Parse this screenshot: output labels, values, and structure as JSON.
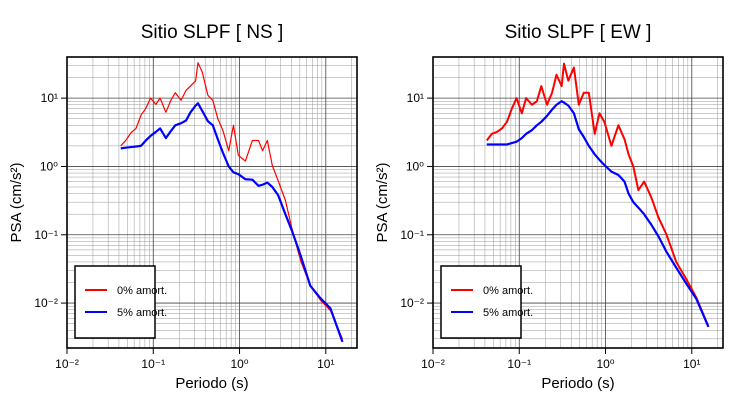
{
  "chart_data": [
    {
      "type": "line",
      "title": "Sitio SLPF [ NS ]",
      "xlabel": "Periodo (s)",
      "ylabel": "PSA (cm/s²)",
      "log_x": true,
      "log_y": true,
      "grid": true,
      "legend": "lower left",
      "xlim": [
        0.01,
        23
      ],
      "ylim": [
        0.0022,
        40
      ],
      "xticks": [
        {
          "value": 0.01,
          "label": "10⁻²"
        },
        {
          "value": 0.1,
          "label": "10⁻¹"
        },
        {
          "value": 1,
          "label": "10⁰"
        },
        {
          "value": 10,
          "label": "10¹"
        }
      ],
      "yticks": [
        {
          "value": 0.01,
          "label": "10⁻²"
        },
        {
          "value": 0.1,
          "label": "10⁻¹"
        },
        {
          "value": 1,
          "label": "10⁰"
        },
        {
          "value": 10,
          "label": "10¹"
        }
      ],
      "x": [
        0.042,
        0.048,
        0.055,
        0.063,
        0.072,
        0.082,
        0.093,
        0.107,
        0.12,
        0.14,
        0.16,
        0.18,
        0.21,
        0.24,
        0.27,
        0.31,
        0.33,
        0.37,
        0.43,
        0.49,
        0.56,
        0.64,
        0.75,
        0.85,
        0.97,
        1.17,
        1.41,
        1.66,
        1.85,
        2.1,
        2.4,
        2.8,
        3.4,
        4.1,
        5.1,
        6.6,
        8.7,
        11.3,
        15.6
      ],
      "series": [
        {
          "name": "0% amort.",
          "color": "#ff0000",
          "width": 1.2,
          "values": [
            2.0,
            2.4,
            3.1,
            3.6,
            5.6,
            7.1,
            10,
            8.1,
            10,
            6.2,
            9.3,
            12,
            9.3,
            13,
            15,
            18,
            33,
            24,
            11,
            9.3,
            5.0,
            3.4,
            1.7,
            4.0,
            1.45,
            1.2,
            2.4,
            2.4,
            1.7,
            2.4,
            1.03,
            0.62,
            0.32,
            0.116,
            0.042,
            0.018,
            0.011,
            0.0078,
            0.003
          ]
        },
        {
          "name": "5% amort.",
          "color": "#0000ff",
          "width": 2.2,
          "values": [
            1.84,
            1.88,
            1.92,
            1.96,
            2.0,
            2.4,
            2.8,
            3.2,
            3.6,
            2.6,
            3.3,
            4.0,
            4.3,
            4.7,
            6.2,
            7.8,
            8.4,
            6.5,
            4.6,
            4.0,
            2.5,
            1.6,
            1.0,
            0.82,
            0.77,
            0.65,
            0.64,
            0.52,
            0.54,
            0.58,
            0.5,
            0.38,
            0.2,
            0.11,
            0.05,
            0.018,
            0.0117,
            0.0084,
            0.0027
          ]
        }
      ]
    },
    {
      "type": "line",
      "title": "Sitio SLPF [ EW ]",
      "xlabel": "Periodo (s)",
      "ylabel": "PSA (cm/s²)",
      "log_x": true,
      "log_y": true,
      "grid": true,
      "legend": "lower left",
      "xlim": [
        0.01,
        23
      ],
      "ylim": [
        0.0022,
        40
      ],
      "xticks": [
        {
          "value": 0.01,
          "label": "10⁻²"
        },
        {
          "value": 0.1,
          "label": "10⁻¹"
        },
        {
          "value": 1,
          "label": "10⁰"
        },
        {
          "value": 10,
          "label": "10¹"
        }
      ],
      "yticks": [
        {
          "value": 0.01,
          "label": "10⁻²"
        },
        {
          "value": 0.1,
          "label": "10⁻¹"
        },
        {
          "value": 1,
          "label": "10⁰"
        },
        {
          "value": 10,
          "label": "10¹"
        }
      ],
      "x": [
        0.042,
        0.048,
        0.055,
        0.063,
        0.072,
        0.082,
        0.093,
        0.107,
        0.12,
        0.14,
        0.16,
        0.18,
        0.21,
        0.24,
        0.27,
        0.31,
        0.33,
        0.37,
        0.43,
        0.49,
        0.56,
        0.64,
        0.75,
        0.85,
        0.97,
        1.17,
        1.41,
        1.66,
        1.85,
        2.1,
        2.4,
        2.8,
        3.4,
        4.1,
        5.1,
        6.6,
        8.7,
        11.3,
        15.6
      ],
      "series": [
        {
          "name": "0% amort.",
          "color": "#ff0000",
          "width": 2,
          "values": [
            2.4,
            3.0,
            3.2,
            3.6,
            4.5,
            7.0,
            10.0,
            6.0,
            10,
            8.0,
            9.0,
            15,
            8.0,
            12,
            22,
            15,
            32,
            18,
            28,
            8,
            12,
            12,
            3.0,
            6.0,
            4.5,
            2.0,
            4.0,
            2.5,
            1.5,
            1.0,
            0.45,
            0.6,
            0.35,
            0.18,
            0.1,
            0.04,
            0.022,
            0.012,
            0.0045
          ]
        },
        {
          "name": "5% amort.",
          "color": "#0000ff",
          "width": 2.2,
          "values": [
            2.1,
            2.1,
            2.1,
            2.1,
            2.1,
            2.2,
            2.3,
            2.6,
            3.0,
            3.4,
            4.0,
            4.5,
            5.5,
            6.8,
            8.0,
            9.0,
            8.6,
            7.8,
            6.0,
            3.5,
            2.7,
            2.0,
            1.5,
            1.25,
            1.05,
            0.84,
            0.75,
            0.6,
            0.4,
            0.3,
            0.25,
            0.2,
            0.14,
            0.095,
            0.056,
            0.033,
            0.019,
            0.0115,
            0.0045
          ]
        }
      ]
    }
  ]
}
